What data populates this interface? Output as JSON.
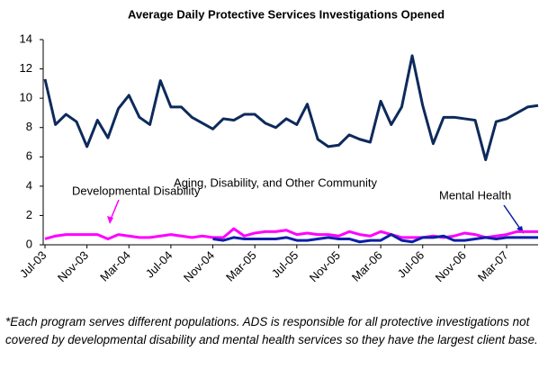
{
  "chart_data": {
    "type": "line",
    "title": "Average Daily Protective Services Investigations Opened",
    "categories": [
      "Jul-03",
      null,
      null,
      null,
      "Nov-03",
      null,
      null,
      null,
      "Mar-04",
      null,
      null,
      null,
      "Jul-04",
      null,
      null,
      null,
      "Nov-04",
      null,
      null,
      null,
      "Mar-05",
      null,
      null,
      null,
      "Jul-05",
      null,
      null,
      null,
      "Nov-05",
      null,
      null,
      null,
      "Mar-06",
      null,
      null,
      null,
      "Jul-06",
      null,
      null,
      null,
      "Nov-06",
      null,
      null,
      null,
      "Mar-07",
      null,
      null,
      null
    ],
    "series": [
      {
        "name": "Aging, Disability, and Other Community",
        "color": "#0d2a5c",
        "values": [
          11.3,
          8.2,
          8.9,
          8.4,
          6.7,
          8.5,
          7.3,
          9.3,
          10.2,
          8.7,
          8.2,
          11.2,
          9.4,
          9.4,
          8.7,
          8.3,
          7.9,
          8.6,
          8.5,
          8.9,
          8.9,
          8.3,
          8.0,
          8.6,
          8.2,
          9.6,
          7.2,
          6.7,
          6.8,
          7.5,
          7.2,
          7.0,
          9.8,
          8.2,
          9.4,
          12.9,
          9.5,
          6.9,
          8.7,
          8.7,
          8.6,
          8.5,
          5.8,
          8.4,
          8.6,
          9.0,
          9.4,
          9.5
        ]
      },
      {
        "name": "Developmental Disability",
        "color": "#ff00ff",
        "values": [
          0.4,
          0.6,
          0.7,
          0.7,
          0.7,
          0.7,
          0.4,
          0.7,
          0.6,
          0.5,
          0.5,
          0.6,
          0.7,
          0.6,
          0.5,
          0.6,
          0.5,
          0.5,
          1.1,
          0.6,
          0.8,
          0.9,
          0.9,
          1.0,
          0.7,
          0.8,
          0.7,
          0.7,
          0.6,
          0.9,
          0.7,
          0.6,
          0.9,
          0.7,
          0.5,
          0.5,
          0.5,
          0.6,
          0.5,
          0.6,
          0.8,
          0.7,
          0.5,
          0.6,
          0.7,
          0.9,
          0.9,
          0.9
        ]
      },
      {
        "name": "Mental Health",
        "color": "#0a1fa8",
        "values": [
          null,
          null,
          null,
          null,
          null,
          null,
          null,
          null,
          null,
          null,
          null,
          null,
          null,
          null,
          null,
          null,
          0.4,
          0.3,
          0.5,
          0.4,
          0.4,
          0.4,
          0.4,
          0.5,
          0.3,
          0.3,
          0.4,
          0.5,
          0.4,
          0.4,
          0.2,
          0.3,
          0.3,
          0.7,
          0.3,
          0.2,
          0.5,
          0.5,
          0.6,
          0.3,
          0.3,
          0.4,
          0.5,
          0.4,
          0.5,
          0.5,
          0.5,
          0.5
        ]
      }
    ],
    "ylim": [
      0,
      14
    ],
    "yticks": [
      0,
      2,
      4,
      6,
      8,
      10,
      12,
      14
    ],
    "grid": false,
    "note": "*Each program serves different populations. ADS is responsible for all protective investigations not covered by developmental disability and mental health services so they have the largest client base."
  }
}
